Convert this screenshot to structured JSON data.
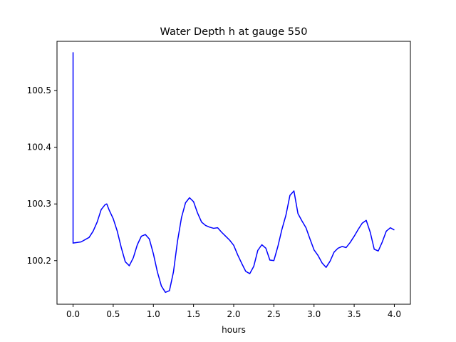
{
  "chart_data": {
    "type": "line",
    "title": "Water Depth h at gauge 550",
    "xlabel": "hours",
    "ylabel": "",
    "xlim": [
      -0.2,
      4.2
    ],
    "ylim": [
      100.123,
      100.587
    ],
    "xticks": [
      0.0,
      0.5,
      1.0,
      1.5,
      2.0,
      2.5,
      3.0,
      3.5,
      4.0
    ],
    "xtick_labels": [
      "0.0",
      "0.5",
      "1.0",
      "1.5",
      "2.0",
      "2.5",
      "3.0",
      "3.5",
      "4.0"
    ],
    "yticks": [
      100.2,
      100.3,
      100.4,
      100.5
    ],
    "ytick_labels": [
      "100.2",
      "100.3",
      "100.4",
      "100.5"
    ],
    "grid": false,
    "legend": "none",
    "line_color": "#0000ff",
    "series": [
      {
        "x": [
          0.0,
          0.0,
          0.0,
          0.1,
          0.2,
          0.25,
          0.3,
          0.35,
          0.4,
          0.42,
          0.45,
          0.5,
          0.55,
          0.6,
          0.65,
          0.7,
          0.75,
          0.8,
          0.85,
          0.9,
          0.95,
          1.0,
          1.05,
          1.1,
          1.15,
          1.2,
          1.25,
          1.3,
          1.35,
          1.4,
          1.45,
          1.5,
          1.55,
          1.6,
          1.65,
          1.7,
          1.75,
          1.8,
          1.85,
          1.9,
          1.95,
          2.0,
          2.05,
          2.1,
          2.15,
          2.2,
          2.25,
          2.3,
          2.35,
          2.4,
          2.45,
          2.5,
          2.55,
          2.6,
          2.65,
          2.7,
          2.75,
          2.8,
          2.85,
          2.9,
          2.95,
          3.0,
          3.05,
          3.1,
          3.15,
          3.2,
          3.25,
          3.3,
          3.35,
          3.4,
          3.45,
          3.5,
          3.55,
          3.6,
          3.65,
          3.7,
          3.75,
          3.8,
          3.85,
          3.9,
          3.95,
          4.0
        ],
        "y": [
          100.23,
          100.567,
          100.231,
          100.233,
          100.241,
          100.252,
          100.268,
          100.29,
          100.299,
          100.3,
          100.289,
          100.274,
          100.252,
          100.223,
          100.198,
          100.191,
          100.205,
          100.228,
          100.243,
          100.246,
          100.238,
          100.212,
          100.18,
          100.155,
          100.144,
          100.147,
          100.18,
          100.234,
          100.276,
          100.302,
          100.311,
          100.304,
          100.284,
          100.268,
          100.262,
          100.259,
          100.257,
          100.258,
          100.25,
          100.243,
          100.236,
          100.227,
          100.21,
          100.195,
          100.181,
          100.177,
          100.19,
          100.218,
          100.228,
          100.222,
          100.201,
          100.2,
          100.225,
          100.255,
          100.28,
          100.315,
          100.323,
          100.283,
          100.27,
          100.258,
          100.238,
          100.219,
          100.209,
          100.196,
          100.188,
          100.199,
          100.215,
          100.222,
          100.225,
          100.223,
          100.232,
          100.243,
          100.255,
          100.266,
          100.271,
          100.25,
          100.22,
          100.217,
          100.233,
          100.252,
          100.258,
          100.254
        ]
      }
    ]
  }
}
